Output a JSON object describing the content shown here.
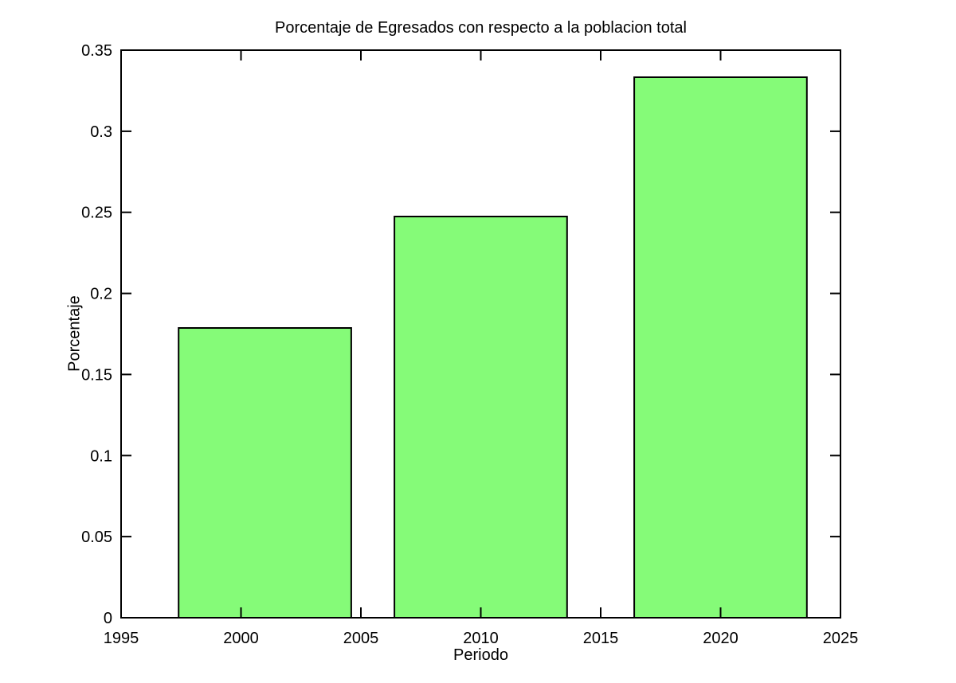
{
  "figure": {
    "background_color": "#ffffff"
  },
  "chart_data": {
    "type": "bar",
    "title": "Porcentaje de Egresados con respecto a la poblacion total",
    "xlabel": "Periodo",
    "ylabel": "Porcentaje",
    "categories": [
      2001,
      2010,
      2020
    ],
    "values": [
      0.1787,
      0.2474,
      0.3333
    ],
    "bar_width_years": 7.2,
    "xlim": [
      1995,
      2025
    ],
    "ylim": [
      0,
      0.35
    ],
    "xticks": [
      1995,
      2000,
      2005,
      2010,
      2015,
      2020,
      2025
    ],
    "xtick_labels": [
      "1995",
      "2000",
      "2005",
      "2010",
      "2015",
      "2020",
      "2025"
    ],
    "yticks": [
      0,
      0.05,
      0.1,
      0.15,
      0.2,
      0.25,
      0.3,
      0.35
    ],
    "ytick_labels": [
      "0",
      "0.05",
      "0.1",
      "0.15",
      "0.2",
      "0.25",
      "0.3",
      "0.35"
    ],
    "grid": false,
    "legend": null,
    "bar_fill_color": "#85fb78",
    "bar_edge_color": "#000000",
    "axis_color": "#000000",
    "tick_direction": "in"
  }
}
